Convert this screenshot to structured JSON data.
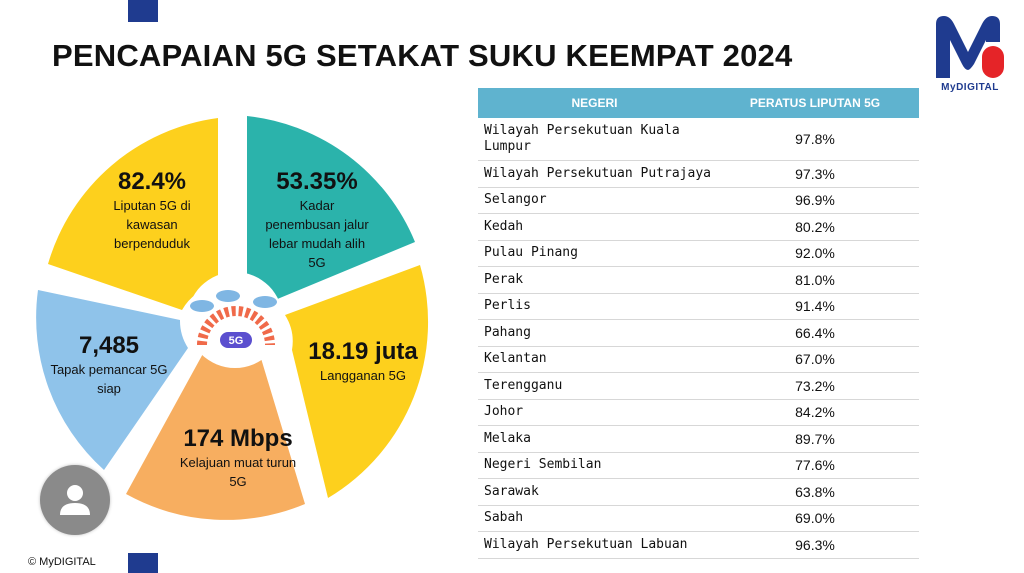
{
  "title": "PENCAPAIAN 5G SETAKAT SUKU KEEMPAT 2024",
  "logo": {
    "label": "MyDIGITAL",
    "colors": {
      "blue": "#1f3b8f",
      "red": "#e52428"
    }
  },
  "wheel": {
    "center_label": "5G",
    "segments": [
      {
        "value": "82.4%",
        "label": [
          "Liputan 5G di",
          "kawasan",
          "berpenduduk"
        ],
        "color": "#fdd01d"
      },
      {
        "value": "53.35%",
        "label": [
          "Kadar",
          "penembusan jalur",
          "lebar mudah alih",
          "5G"
        ],
        "color": "#2bb3ab"
      },
      {
        "value": "18.19 juta",
        "label": [
          "Langganan 5G"
        ],
        "color": "#fdd01d"
      },
      {
        "value": "174 Mbps",
        "label": [
          "Kelajuan muat turun",
          "5G"
        ],
        "color": "#f7ae60"
      },
      {
        "value": "7,485",
        "label": [
          "Tapak pemancar 5G",
          "siap"
        ],
        "color": "#8fc3ea"
      }
    ]
  },
  "table": {
    "headers": [
      "NEGERI",
      "PERATUS LIPUTAN 5G"
    ],
    "header_color": "#5fb3cf",
    "rows": [
      {
        "state": "Wilayah Persekutuan Kuala Lumpur",
        "coverage": "97.8%"
      },
      {
        "state": "Wilayah Persekutuan Putrajaya",
        "coverage": "97.3%"
      },
      {
        "state": "Selangor",
        "coverage": "96.9%"
      },
      {
        "state": "Kedah",
        "coverage": "80.2%"
      },
      {
        "state": "Pulau Pinang",
        "coverage": "92.0%"
      },
      {
        "state": "Perak",
        "coverage": "81.0%"
      },
      {
        "state": "Perlis",
        "coverage": "91.4%"
      },
      {
        "state": "Pahang",
        "coverage": "66.4%"
      },
      {
        "state": "Kelantan",
        "coverage": "67.0%"
      },
      {
        "state": "Terengganu",
        "coverage": "73.2%"
      },
      {
        "state": "Johor",
        "coverage": "84.2%"
      },
      {
        "state": "Melaka",
        "coverage": "89.7%"
      },
      {
        "state": "Negeri Sembilan",
        "coverage": "77.6%"
      },
      {
        "state": "Sarawak",
        "coverage": "63.8%"
      },
      {
        "state": "Sabah",
        "coverage": "69.0%"
      },
      {
        "state": "Wilayah Persekutuan Labuan",
        "coverage": "96.3%"
      }
    ]
  },
  "copyright": "© MyDIGITAL",
  "avatar_icon": "user-avatar-icon"
}
